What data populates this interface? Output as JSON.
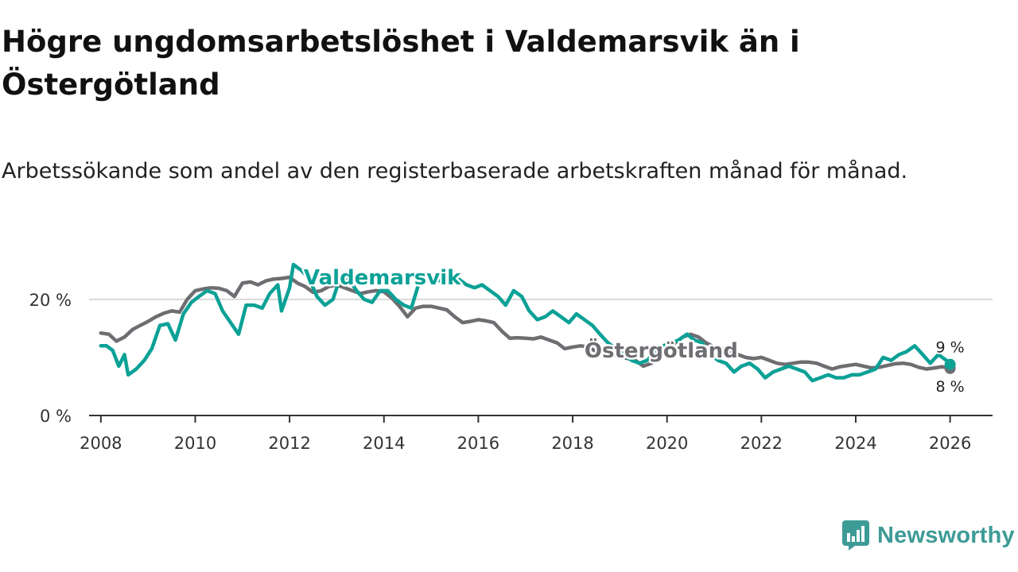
{
  "title": "Högre ungdomsarbetslöshet i Valdemarsvik än i Östergötland",
  "subtitle": "Arbetssökande som andel av den registerbaserade arbetskraften månad för månad.",
  "brand": {
    "name": "Newsworthy",
    "color": "#3d9b96"
  },
  "chart_data": {
    "type": "line",
    "title": "Högre ungdomsarbetslöshet i Valdemarsvik än i Östergötland",
    "xlabel": "",
    "ylabel": "",
    "xlim": [
      2007.75,
      2026.9
    ],
    "ylim": [
      0,
      27.5
    ],
    "x_ticks": [
      2008,
      2010,
      2012,
      2014,
      2016,
      2018,
      2020,
      2022,
      2024,
      2026
    ],
    "x_tick_labels": [
      "2008",
      "2010",
      "2012",
      "2014",
      "2016",
      "2018",
      "2020",
      "2022",
      "2024",
      "2026"
    ],
    "y_ticks": [
      0,
      20
    ],
    "y_tick_labels": [
      "0 %",
      "20 %"
    ],
    "grid": "horizontal",
    "series": [
      {
        "name": "Östergötland",
        "label": "Östergötland",
        "color": "#6e6d71",
        "end_label": "8 %",
        "points": [
          [
            2008.0,
            14.2
          ],
          [
            2008.17,
            14.0
          ],
          [
            2008.33,
            12.8
          ],
          [
            2008.5,
            13.5
          ],
          [
            2008.67,
            14.8
          ],
          [
            2008.83,
            15.5
          ],
          [
            2009.0,
            16.2
          ],
          [
            2009.17,
            17.0
          ],
          [
            2009.33,
            17.6
          ],
          [
            2009.5,
            18.0
          ],
          [
            2009.67,
            17.8
          ],
          [
            2009.83,
            20.0
          ],
          [
            2010.0,
            21.5
          ],
          [
            2010.17,
            21.8
          ],
          [
            2010.33,
            22.0
          ],
          [
            2010.5,
            21.9
          ],
          [
            2010.67,
            21.5
          ],
          [
            2010.83,
            20.5
          ],
          [
            2011.0,
            22.8
          ],
          [
            2011.17,
            23.0
          ],
          [
            2011.33,
            22.5
          ],
          [
            2011.5,
            23.2
          ],
          [
            2011.67,
            23.5
          ],
          [
            2011.83,
            23.6
          ],
          [
            2012.0,
            23.8
          ],
          [
            2012.17,
            22.8
          ],
          [
            2012.33,
            22.2
          ],
          [
            2012.5,
            21.2
          ],
          [
            2012.67,
            21.5
          ],
          [
            2012.83,
            22.2
          ],
          [
            2013.0,
            22.5
          ],
          [
            2013.17,
            22.0
          ],
          [
            2013.33,
            21.5
          ],
          [
            2013.5,
            21.0
          ],
          [
            2013.67,
            21.3
          ],
          [
            2013.83,
            21.5
          ],
          [
            2014.0,
            21.3
          ],
          [
            2014.17,
            20.2
          ],
          [
            2014.33,
            18.8
          ],
          [
            2014.5,
            17.0
          ],
          [
            2014.67,
            18.5
          ],
          [
            2014.83,
            18.8
          ],
          [
            2015.0,
            18.8
          ],
          [
            2015.17,
            18.5
          ],
          [
            2015.33,
            18.2
          ],
          [
            2015.5,
            17.0
          ],
          [
            2015.67,
            16.0
          ],
          [
            2015.83,
            16.2
          ],
          [
            2016.0,
            16.5
          ],
          [
            2016.17,
            16.3
          ],
          [
            2016.33,
            16.0
          ],
          [
            2016.5,
            14.5
          ],
          [
            2016.67,
            13.3
          ],
          [
            2016.83,
            13.4
          ],
          [
            2017.0,
            13.3
          ],
          [
            2017.17,
            13.2
          ],
          [
            2017.33,
            13.5
          ],
          [
            2017.5,
            13.0
          ],
          [
            2017.67,
            12.5
          ],
          [
            2017.83,
            11.5
          ],
          [
            2018.0,
            11.8
          ],
          [
            2018.17,
            12.0
          ],
          [
            2018.33,
            11.8
          ],
          [
            2018.5,
            11.0
          ],
          [
            2018.67,
            10.8
          ],
          [
            2018.83,
            10.5
          ],
          [
            2019.0,
            10.2
          ],
          [
            2019.17,
            9.8
          ],
          [
            2019.33,
            9.5
          ],
          [
            2019.5,
            8.5
          ],
          [
            2019.67,
            9.0
          ],
          [
            2019.83,
            10.0
          ],
          [
            2020.0,
            11.0
          ],
          [
            2020.17,
            12.5
          ],
          [
            2020.33,
            13.5
          ],
          [
            2020.5,
            14.0
          ],
          [
            2020.67,
            13.5
          ],
          [
            2020.83,
            12.5
          ],
          [
            2021.0,
            11.8
          ],
          [
            2021.17,
            11.5
          ],
          [
            2021.33,
            11.0
          ],
          [
            2021.5,
            10.5
          ],
          [
            2021.67,
            10.0
          ],
          [
            2021.83,
            9.8
          ],
          [
            2022.0,
            10.0
          ],
          [
            2022.17,
            9.5
          ],
          [
            2022.33,
            9.0
          ],
          [
            2022.5,
            8.8
          ],
          [
            2022.67,
            9.0
          ],
          [
            2022.83,
            9.2
          ],
          [
            2023.0,
            9.2
          ],
          [
            2023.17,
            9.0
          ],
          [
            2023.33,
            8.5
          ],
          [
            2023.5,
            8.0
          ],
          [
            2023.67,
            8.4
          ],
          [
            2023.83,
            8.6
          ],
          [
            2024.0,
            8.8
          ],
          [
            2024.17,
            8.5
          ],
          [
            2024.33,
            8.2
          ],
          [
            2024.5,
            8.3
          ],
          [
            2024.67,
            8.6
          ],
          [
            2024.83,
            8.9
          ],
          [
            2025.0,
            9.0
          ],
          [
            2025.17,
            8.8
          ],
          [
            2025.33,
            8.3
          ],
          [
            2025.5,
            8.0
          ],
          [
            2025.67,
            8.2
          ],
          [
            2025.83,
            8.4
          ],
          [
            2026.0,
            8.1
          ]
        ]
      },
      {
        "name": "Valdemarsvik",
        "label": "Valdemarsvik",
        "color": "#0ba196",
        "end_label": "9 %",
        "points": [
          [
            2008.0,
            12.0
          ],
          [
            2008.12,
            12.0
          ],
          [
            2008.25,
            11.2
          ],
          [
            2008.38,
            8.5
          ],
          [
            2008.5,
            10.5
          ],
          [
            2008.58,
            7.0
          ],
          [
            2008.75,
            8.0
          ],
          [
            2008.92,
            9.5
          ],
          [
            2009.08,
            11.5
          ],
          [
            2009.25,
            15.5
          ],
          [
            2009.42,
            15.8
          ],
          [
            2009.58,
            13.0
          ],
          [
            2009.75,
            17.5
          ],
          [
            2009.92,
            19.5
          ],
          [
            2010.08,
            20.5
          ],
          [
            2010.25,
            21.5
          ],
          [
            2010.42,
            21.0
          ],
          [
            2010.58,
            18.0
          ],
          [
            2010.75,
            16.0
          ],
          [
            2010.92,
            14.0
          ],
          [
            2011.08,
            19.0
          ],
          [
            2011.25,
            19.0
          ],
          [
            2011.42,
            18.5
          ],
          [
            2011.58,
            21.0
          ],
          [
            2011.75,
            22.5
          ],
          [
            2011.83,
            18.0
          ],
          [
            2012.0,
            22.0
          ],
          [
            2012.08,
            26.0
          ],
          [
            2012.25,
            25.0
          ],
          [
            2012.42,
            23.5
          ],
          [
            2012.58,
            20.5
          ],
          [
            2012.75,
            19.0
          ],
          [
            2012.92,
            20.0
          ],
          [
            2013.08,
            24.0
          ],
          [
            2013.25,
            23.5
          ],
          [
            2013.42,
            21.5
          ],
          [
            2013.58,
            20.0
          ],
          [
            2013.75,
            19.5
          ],
          [
            2013.92,
            21.5
          ],
          [
            2014.08,
            21.5
          ],
          [
            2014.25,
            20.0
          ],
          [
            2014.42,
            19.0
          ],
          [
            2014.58,
            18.5
          ],
          [
            2014.75,
            23.0
          ],
          [
            2014.92,
            24.0
          ],
          [
            2015.08,
            23.5
          ],
          [
            2015.25,
            23.0
          ],
          [
            2015.42,
            24.5
          ],
          [
            2015.58,
            23.5
          ],
          [
            2015.75,
            22.5
          ],
          [
            2015.92,
            22.0
          ],
          [
            2016.08,
            22.5
          ],
          [
            2016.25,
            21.5
          ],
          [
            2016.42,
            20.5
          ],
          [
            2016.58,
            19.0
          ],
          [
            2016.75,
            21.5
          ],
          [
            2016.92,
            20.5
          ],
          [
            2017.08,
            18.0
          ],
          [
            2017.25,
            16.5
          ],
          [
            2017.42,
            17.0
          ],
          [
            2017.58,
            18.0
          ],
          [
            2017.75,
            17.0
          ],
          [
            2017.92,
            16.0
          ],
          [
            2018.08,
            17.5
          ],
          [
            2018.25,
            16.5
          ],
          [
            2018.42,
            15.5
          ],
          [
            2018.58,
            14.0
          ],
          [
            2018.75,
            12.5
          ],
          [
            2018.92,
            11.5
          ],
          [
            2019.08,
            10.5
          ],
          [
            2019.25,
            9.5
          ],
          [
            2019.42,
            9.0
          ],
          [
            2019.58,
            9.5
          ],
          [
            2019.75,
            11.0
          ],
          [
            2019.92,
            12.0
          ],
          [
            2020.08,
            12.5
          ],
          [
            2020.25,
            13.0
          ],
          [
            2020.42,
            14.0
          ],
          [
            2020.58,
            13.0
          ],
          [
            2020.75,
            12.5
          ],
          [
            2020.92,
            10.5
          ],
          [
            2021.08,
            9.5
          ],
          [
            2021.25,
            9.0
          ],
          [
            2021.42,
            7.5
          ],
          [
            2021.58,
            8.5
          ],
          [
            2021.75,
            9.0
          ],
          [
            2021.92,
            8.0
          ],
          [
            2022.08,
            6.5
          ],
          [
            2022.25,
            7.5
          ],
          [
            2022.42,
            8.0
          ],
          [
            2022.58,
            8.5
          ],
          [
            2022.75,
            8.0
          ],
          [
            2022.92,
            7.5
          ],
          [
            2023.08,
            6.0
          ],
          [
            2023.25,
            6.5
          ],
          [
            2023.42,
            7.0
          ],
          [
            2023.58,
            6.5
          ],
          [
            2023.75,
            6.5
          ],
          [
            2023.92,
            7.0
          ],
          [
            2024.08,
            7.0
          ],
          [
            2024.25,
            7.5
          ],
          [
            2024.42,
            8.0
          ],
          [
            2024.58,
            10.0
          ],
          [
            2024.75,
            9.5
          ],
          [
            2024.92,
            10.5
          ],
          [
            2025.08,
            11.0
          ],
          [
            2025.25,
            12.0
          ],
          [
            2025.42,
            10.5
          ],
          [
            2025.58,
            9.0
          ],
          [
            2025.75,
            10.5
          ],
          [
            2025.92,
            9.5
          ],
          [
            2026.0,
            8.8
          ]
        ]
      }
    ]
  }
}
